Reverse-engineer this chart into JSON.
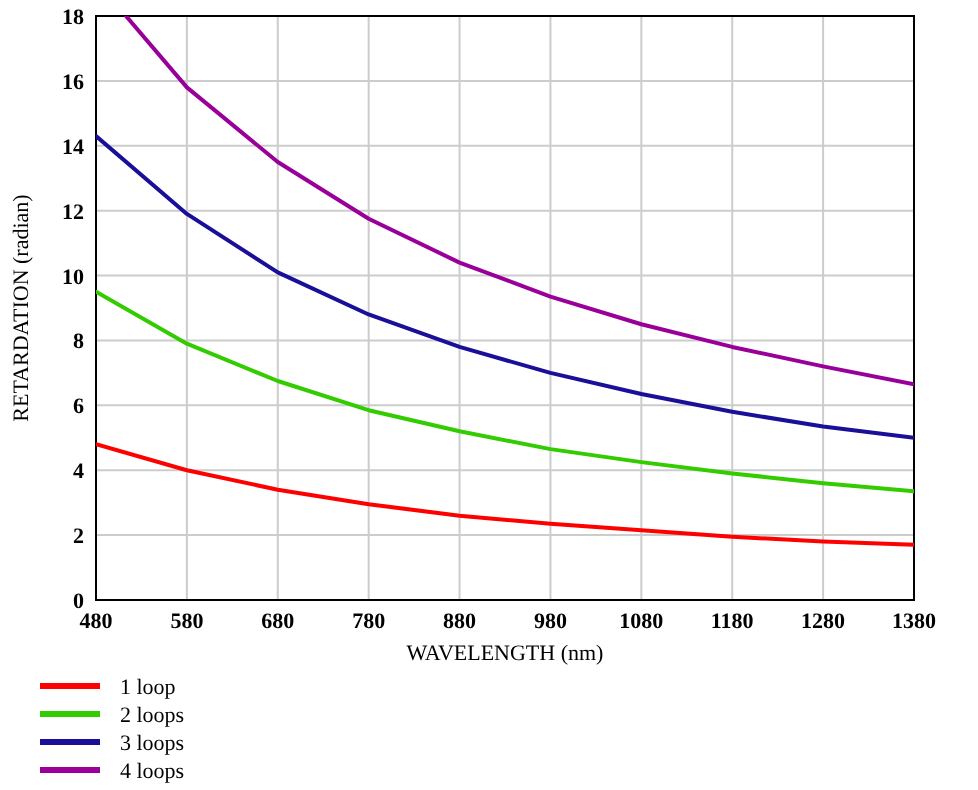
{
  "chart_data": {
    "type": "line",
    "xlabel": "WAVELENGTH (nm)",
    "ylabel": "RETARDATION (radian)",
    "xlim": [
      480,
      1380
    ],
    "ylim": [
      0,
      18
    ],
    "xticks": [
      480,
      580,
      680,
      780,
      880,
      980,
      1080,
      1180,
      1280,
      1380
    ],
    "yticks": [
      0,
      2,
      4,
      6,
      8,
      10,
      12,
      14,
      16,
      18
    ],
    "grid": true,
    "legend": "bottom left",
    "marker": "none",
    "line_style": "solid",
    "series": [
      {
        "name": "1 loop",
        "color": "#ff0000",
        "x": [
          480,
          580,
          680,
          780,
          880,
          980,
          1080,
          1180,
          1280,
          1380
        ],
        "values": [
          4.8,
          4.0,
          3.4,
          2.95,
          2.6,
          2.35,
          2.15,
          1.95,
          1.8,
          1.7
        ]
      },
      {
        "name": "2 loops",
        "color": "#33cc00",
        "x": [
          480,
          580,
          680,
          780,
          880,
          980,
          1080,
          1180,
          1280,
          1380
        ],
        "values": [
          9.5,
          7.9,
          6.75,
          5.85,
          5.2,
          4.65,
          4.25,
          3.9,
          3.6,
          3.35
        ]
      },
      {
        "name": "3 loops",
        "color": "#1a0f99",
        "x": [
          480,
          580,
          680,
          780,
          880,
          980,
          1080,
          1180,
          1280,
          1380
        ],
        "values": [
          14.3,
          11.9,
          10.1,
          8.8,
          7.8,
          7.0,
          6.35,
          5.8,
          5.35,
          5.0
        ]
      },
      {
        "name": "4 loops",
        "color": "#990099",
        "x": [
          513,
          580,
          680,
          780,
          880,
          980,
          1080,
          1180,
          1280,
          1380
        ],
        "values": [
          18,
          15.8,
          13.5,
          11.75,
          10.4,
          9.35,
          8.5,
          7.8,
          7.2,
          6.65
        ]
      }
    ]
  }
}
